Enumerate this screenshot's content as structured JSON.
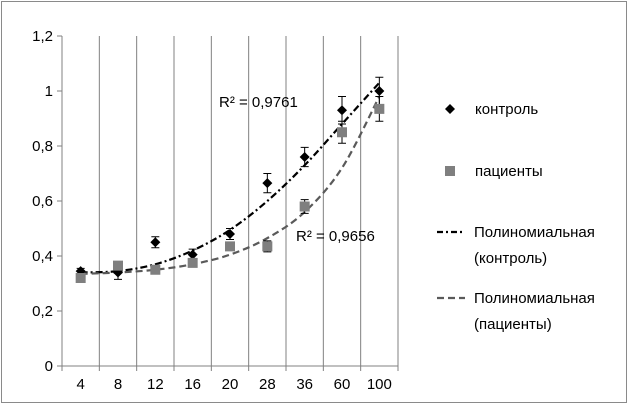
{
  "chart_data": {
    "type": "scatter",
    "categories": [
      "4",
      "8",
      "12",
      "16",
      "20",
      "28",
      "36",
      "60",
      "100"
    ],
    "ylim": [
      0,
      1.2
    ],
    "yticks": [
      "0",
      "0,2",
      "0,4",
      "0,6",
      "0,8",
      "1",
      "1,2"
    ],
    "grid": "vertical",
    "legend_position": "right",
    "series": [
      {
        "name": "контроль",
        "marker": "diamond",
        "color": "#000000",
        "values": [
          0.345,
          0.34,
          0.45,
          0.405,
          0.48,
          0.665,
          0.76,
          0.93,
          1.0
        ],
        "errors": [
          0.01,
          0.025,
          0.02,
          0.02,
          0.02,
          0.035,
          0.035,
          0.05,
          0.05
        ]
      },
      {
        "name": "пациенты",
        "marker": "square",
        "color": "#7f7f7f",
        "values": [
          0.32,
          0.365,
          0.35,
          0.375,
          0.435,
          0.435,
          0.58,
          0.85,
          0.935
        ],
        "errors": [
          0.01,
          0.015,
          0.01,
          0.015,
          0.015,
          0.02,
          0.025,
          0.04,
          0.045
        ]
      }
    ],
    "trendlines": [
      {
        "name": "Полиномиальная (контроль)",
        "legend_lines": [
          "Полиномиальная",
          "(контроль)"
        ],
        "style": "dash-dot",
        "color": "#000000",
        "r2_label": "R² = 0,9761",
        "values": [
          0.34,
          0.345,
          0.37,
          0.42,
          0.495,
          0.6,
          0.73,
          0.88,
          1.03
        ]
      },
      {
        "name": "Полиномиальная (пациенты)",
        "legend_lines": [
          "Полиномиальная",
          "(пациенты)"
        ],
        "style": "dash",
        "color": "#5a5a5a",
        "r2_label": "R² = 0,9656",
        "values": [
          0.335,
          0.34,
          0.35,
          0.37,
          0.405,
          0.465,
          0.56,
          0.72,
          0.98
        ]
      }
    ]
  }
}
